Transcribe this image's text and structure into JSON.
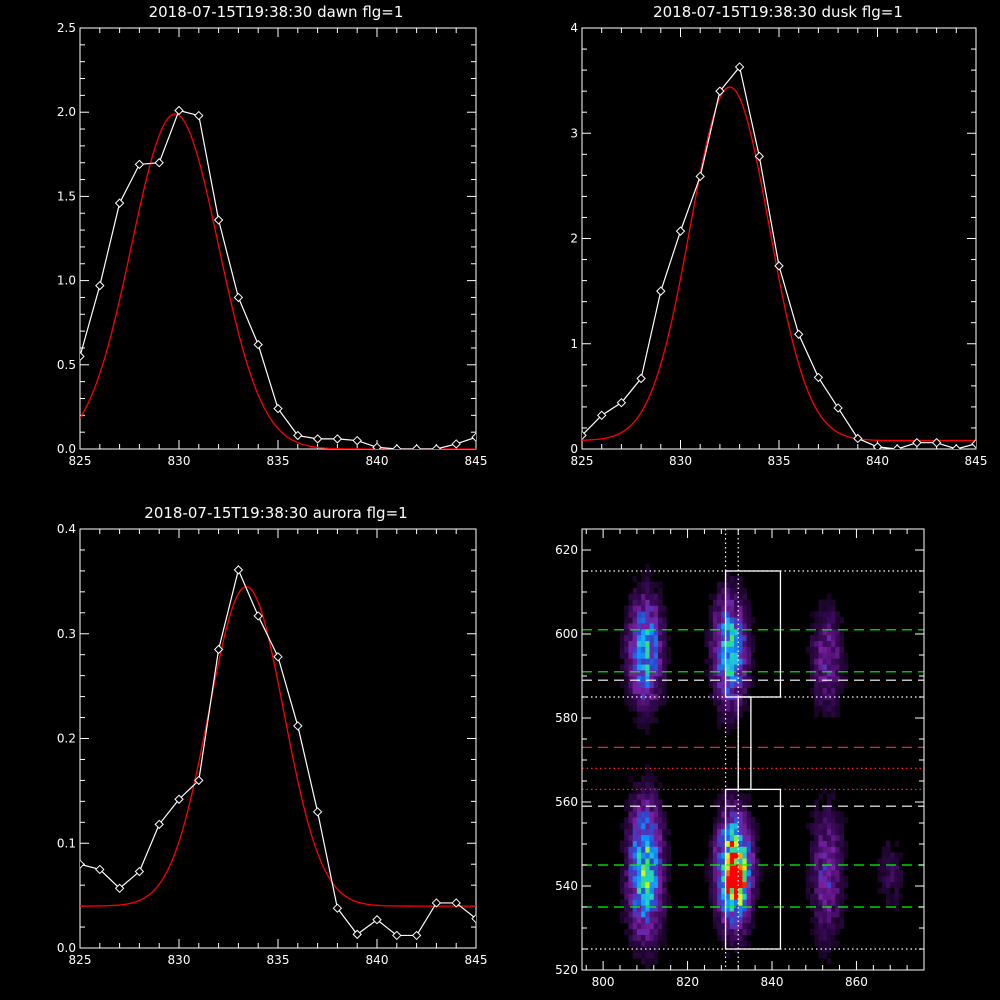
{
  "chart_data": [
    {
      "type": "line",
      "title": "2018-07-15T19:38:30 dawn flg=1",
      "xlim": [
        825,
        845
      ],
      "ylim": [
        0,
        2.5
      ],
      "xticks": [
        "825",
        "830",
        "835",
        "840",
        "845"
      ],
      "yticks": [
        "0.0",
        "0.5",
        "1.0",
        "1.5",
        "2.0",
        "2.5"
      ],
      "series": [
        {
          "color": "#ffffff",
          "marker": "diamond",
          "x": [
            825,
            826,
            827,
            828,
            829,
            830,
            831,
            832,
            833,
            834,
            835,
            836,
            837,
            838,
            839,
            840,
            841,
            842,
            843,
            844,
            845
          ],
          "y": [
            0.55,
            0.97,
            1.46,
            1.69,
            1.7,
            2.01,
            1.98,
            1.36,
            0.9,
            0.62,
            0.24,
            0.08,
            0.06,
            0.06,
            0.05,
            0.01,
            0.0,
            0.0,
            0.0,
            0.03,
            0.07
          ]
        },
        {
          "color": "#ff0000",
          "fit": "gaussian",
          "amp": 1.99,
          "center": 829.8,
          "sigma": 2.2,
          "base": 0.0
        }
      ]
    },
    {
      "type": "line",
      "title": "2018-07-15T19:38:30 dusk flg=1",
      "xlim": [
        825,
        845
      ],
      "ylim": [
        0,
        4
      ],
      "xticks": [
        "825",
        "830",
        "835",
        "840",
        "845"
      ],
      "yticks": [
        "0",
        "1",
        "2",
        "3",
        "4"
      ],
      "series": [
        {
          "color": "#ffffff",
          "marker": "diamond",
          "x": [
            825,
            826,
            827,
            828,
            829,
            830,
            831,
            832,
            833,
            834,
            835,
            836,
            837,
            838,
            839,
            840,
            841,
            842,
            843,
            844,
            845
          ],
          "y": [
            0.13,
            0.32,
            0.44,
            0.67,
            1.5,
            2.07,
            2.59,
            3.4,
            3.63,
            2.78,
            1.74,
            1.09,
            0.68,
            0.39,
            0.1,
            0.02,
            0.0,
            0.06,
            0.06,
            0.0,
            0.05
          ]
        },
        {
          "color": "#ff0000",
          "fit": "gaussian",
          "amp": 3.36,
          "center": 832.5,
          "sigma": 2.0,
          "base": 0.08
        }
      ]
    },
    {
      "type": "line",
      "title": "2018-07-15T19:38:30 aurora flg=1",
      "xlim": [
        825,
        845
      ],
      "ylim": [
        0,
        0.4
      ],
      "xticks": [
        "825",
        "830",
        "835",
        "840",
        "845"
      ],
      "yticks": [
        "0.0",
        "0.1",
        "0.2",
        "0.3",
        "0.4"
      ],
      "series": [
        {
          "color": "#ffffff",
          "marker": "diamond",
          "x": [
            825,
            826,
            827,
            828,
            829,
            830,
            831,
            832,
            833,
            834,
            835,
            836,
            837,
            838,
            839,
            840,
            841,
            842,
            843,
            844,
            845
          ],
          "y": [
            0.08,
            0.075,
            0.057,
            0.073,
            0.118,
            0.142,
            0.16,
            0.285,
            0.361,
            0.317,
            0.278,
            0.212,
            0.13,
            0.038,
            0.013,
            0.027,
            0.012,
            0.012,
            0.043,
            0.043,
            0.028
          ]
        },
        {
          "color": "#ff0000",
          "fit": "gaussian",
          "amp": 0.305,
          "center": 833.4,
          "sigma": 1.9,
          "base": 0.04
        }
      ]
    },
    {
      "type": "heatmap",
      "title": "",
      "xlim": [
        795,
        876
      ],
      "ylim": [
        520,
        625
      ],
      "xticks": [
        "800",
        "820",
        "840",
        "860"
      ],
      "yticks": [
        "520",
        "540",
        "560",
        "580",
        "600",
        "620"
      ],
      "colormap": [
        "#000000",
        "#3a0a5a",
        "#7a1fa0",
        "#2a4ad0",
        "#1090ff",
        "#20d0d0",
        "#40e060",
        "#ffff00",
        "#ff0000"
      ],
      "blobs": [
        {
          "x": 810,
          "y": 596,
          "sx": 2.5,
          "sy": 8,
          "amp": 0.55
        },
        {
          "x": 830,
          "y": 596,
          "sx": 2.5,
          "sy": 8,
          "amp": 0.6
        },
        {
          "x": 810,
          "y": 544,
          "sx": 2.5,
          "sy": 10,
          "amp": 0.65
        },
        {
          "x": 831,
          "y": 544,
          "sx": 2.5,
          "sy": 8,
          "amp": 0.95
        },
        {
          "x": 832,
          "y": 541,
          "sx": 1.2,
          "sy": 2.5,
          "amp": 0.9
        },
        {
          "x": 853,
          "y": 594,
          "sx": 2.5,
          "sy": 8,
          "amp": 0.22
        },
        {
          "x": 853,
          "y": 543,
          "sx": 2.5,
          "sy": 10,
          "amp": 0.25
        },
        {
          "x": 868,
          "y": 543,
          "sx": 2.0,
          "sy": 6,
          "amp": 0.1
        }
      ],
      "hlines": [
        {
          "y": 615,
          "color": "#ffffff",
          "style": "dotted"
        },
        {
          "y": 601,
          "color": "#00ff00",
          "style": "dashed"
        },
        {
          "y": 591,
          "color": "#00ff00",
          "style": "dashed"
        },
        {
          "y": 589,
          "color": "#ffffff",
          "style": "dashed"
        },
        {
          "y": 585,
          "color": "#ffffff",
          "style": "dotted"
        },
        {
          "y": 573,
          "color": "#ff2020",
          "style": "dashed"
        },
        {
          "y": 568,
          "color": "#ff2020",
          "style": "dotted"
        },
        {
          "y": 563,
          "color": "#ff2020",
          "style": "dotted"
        },
        {
          "y": 559,
          "color": "#ffffff",
          "style": "dashed"
        },
        {
          "y": 545,
          "color": "#00ff00",
          "style": "dashed"
        },
        {
          "y": 535,
          "color": "#00ff00",
          "style": "dashed"
        },
        {
          "y": 525,
          "color": "#ffffff",
          "style": "dotted"
        }
      ],
      "vlines": [
        {
          "x": 829,
          "color": "#ffffff",
          "style": "dotted"
        },
        {
          "x": 832,
          "color": "#ffffff",
          "style": "dotted"
        }
      ],
      "boxes": [
        {
          "x0": 829,
          "x1": 842,
          "y0": 585,
          "y1": 615
        },
        {
          "x0": 829,
          "x1": 842,
          "y0": 525,
          "y1": 563
        },
        {
          "x0": 832,
          "x1": 835,
          "y0": 563,
          "y1": 585
        }
      ]
    }
  ]
}
